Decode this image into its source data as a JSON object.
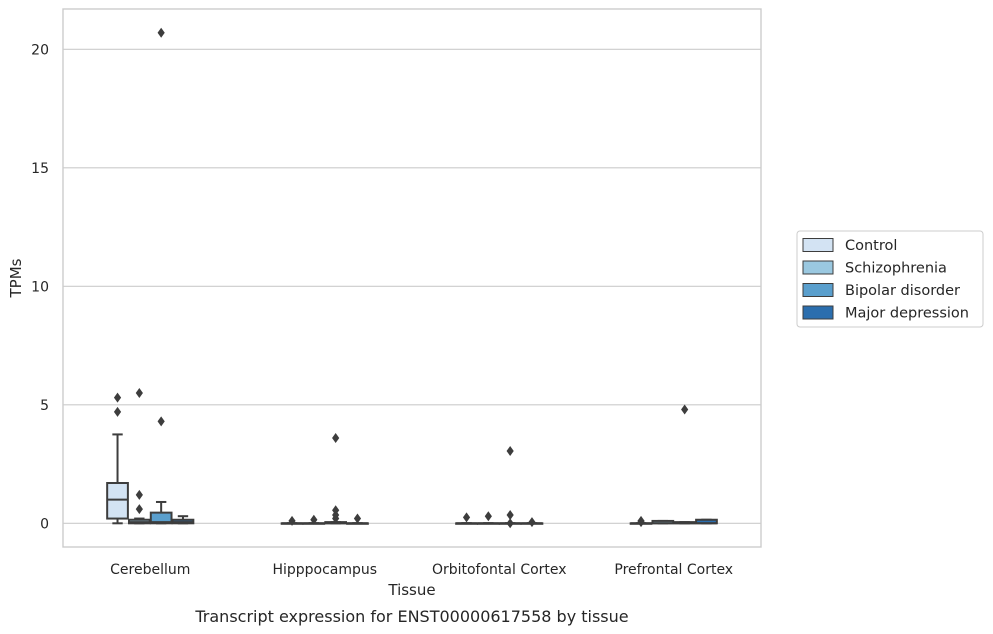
{
  "chart_data": {
    "type": "box",
    "caption": "Transcript expression for ENST00000617558 by tissue",
    "xlabel": "Tissue",
    "ylabel": "TPMs",
    "ylim": [
      -1.0,
      21.7
    ],
    "yticks": [
      0,
      5,
      10,
      15,
      20
    ],
    "grid": "horizontal",
    "legend_position": "right",
    "categories": [
      "Cerebellum",
      "Hipppocampus",
      "Orbitofontal Cortex",
      "Prefrontal Cortex"
    ],
    "series": [
      {
        "name": "Control",
        "color": "#d3e3f3",
        "boxes": [
          {
            "q1": 0.2,
            "median": 1.0,
            "q3": 1.7,
            "whisker_low": 0.0,
            "whisker_high": 3.75,
            "outliers": [
              4.7,
              5.3
            ]
          },
          {
            "q1": 0.0,
            "median": 0.0,
            "q3": 0.0,
            "whisker_low": 0.0,
            "whisker_high": 0.0,
            "outliers": [
              0.1
            ]
          },
          {
            "q1": 0.0,
            "median": 0.0,
            "q3": 0.0,
            "whisker_low": 0.0,
            "whisker_high": 0.0,
            "outliers": [
              0.25
            ]
          },
          {
            "q1": 0.0,
            "median": 0.0,
            "q3": 0.0,
            "whisker_low": 0.0,
            "whisker_high": 0.0,
            "outliers": [
              0.05,
              0.1
            ]
          }
        ]
      },
      {
        "name": "Schizophrenia",
        "color": "#9ac8e0",
        "boxes": [
          {
            "q1": 0.0,
            "median": 0.05,
            "q3": 0.15,
            "whisker_low": 0.0,
            "whisker_high": 0.2,
            "outliers": [
              0.6,
              1.2,
              5.5
            ]
          },
          {
            "q1": 0.0,
            "median": 0.0,
            "q3": 0.0,
            "whisker_low": 0.0,
            "whisker_high": 0.0,
            "outliers": [
              0.15
            ]
          },
          {
            "q1": 0.0,
            "median": 0.0,
            "q3": 0.0,
            "whisker_low": 0.0,
            "whisker_high": 0.0,
            "outliers": [
              0.3
            ]
          },
          {
            "q1": 0.0,
            "median": 0.0,
            "q3": 0.1,
            "whisker_low": 0.0,
            "whisker_high": 0.1,
            "outliers": []
          }
        ]
      },
      {
        "name": "Bipolar disorder",
        "color": "#5a9fcd",
        "boxes": [
          {
            "q1": 0.0,
            "median": 0.05,
            "q3": 0.45,
            "whisker_low": 0.0,
            "whisker_high": 0.9,
            "outliers": [
              4.3,
              20.7
            ]
          },
          {
            "q1": 0.0,
            "median": 0.0,
            "q3": 0.05,
            "whisker_low": 0.0,
            "whisker_high": 0.05,
            "outliers": [
              0.2,
              0.35,
              0.55,
              3.6
            ]
          },
          {
            "q1": 0.0,
            "median": 0.0,
            "q3": 0.0,
            "whisker_low": 0.0,
            "whisker_high": 0.0,
            "outliers": [
              0.0,
              0.35,
              3.05
            ]
          },
          {
            "q1": 0.0,
            "median": 0.0,
            "q3": 0.05,
            "whisker_low": 0.0,
            "whisker_high": 0.05,
            "outliers": [
              4.8
            ]
          }
        ]
      },
      {
        "name": "Major depression",
        "color": "#2b6eae",
        "boxes": [
          {
            "q1": 0.0,
            "median": 0.05,
            "q3": 0.15,
            "whisker_low": 0.0,
            "whisker_high": 0.3,
            "outliers": []
          },
          {
            "q1": 0.0,
            "median": 0.0,
            "q3": 0.0,
            "whisker_low": 0.0,
            "whisker_high": 0.0,
            "outliers": [
              0.2
            ]
          },
          {
            "q1": 0.0,
            "median": 0.0,
            "q3": 0.0,
            "whisker_low": 0.0,
            "whisker_high": 0.0,
            "outliers": [
              0.05
            ]
          },
          {
            "q1": 0.0,
            "median": 0.0,
            "q3": 0.15,
            "whisker_low": 0.0,
            "whisker_high": 0.15,
            "outliers": []
          }
        ]
      }
    ]
  }
}
